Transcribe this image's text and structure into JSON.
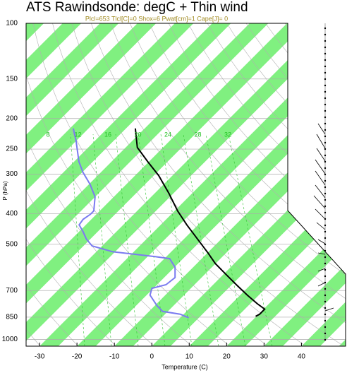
{
  "chart_data": {
    "type": "skewt",
    "title": "ATS Rawindsonde: degC + Thin wind",
    "subtitle": "Plcl=653 Tlcl[C]=0 Shox=6 Pwat[cm]=1 Cape[J]= 0",
    "x_label": "Temperature (C)",
    "y_label": "P (hPa)",
    "xlim": [
      -33.6,
      51.8
    ],
    "xticks": [
      -30,
      -20,
      -10,
      0,
      10,
      20,
      30,
      40
    ],
    "ylim": [
      100,
      1050
    ],
    "yticks": [
      100,
      150,
      200,
      250,
      300,
      400,
      500,
      700,
      850,
      1000
    ],
    "log_y": true,
    "grid": true,
    "band_color": "#80f080",
    "mixing_ratio_labels": [
      8,
      12,
      16,
      20,
      24,
      28,
      32
    ],
    "series": [
      {
        "color": "#000000",
        "pressure": [
          215,
          247,
          274,
          303,
          345,
          392,
          434,
          481,
          533,
          575,
          622,
          671,
          724,
          771,
          802,
          832,
          845
        ],
        "temperature": [
          -62.5,
          -56.9,
          -50.3,
          -43.7,
          -36.2,
          -29.2,
          -23.0,
          -16.4,
          -9.8,
          -5.1,
          0.6,
          6.2,
          11.9,
          16.9,
          20.3,
          20.3,
          19.8
        ]
      },
      {
        "color": "#7b7bf0",
        "pressure": [
          215,
          235,
          274,
          296,
          323,
          354,
          392,
          402,
          417,
          434,
          457,
          481,
          506,
          528,
          547,
          555,
          590,
          637,
          671,
          689,
          724,
          782,
          815,
          832,
          854
        ],
        "temperature": [
          -79.1,
          -75.1,
          -68.7,
          -64.8,
          -59.7,
          -55.0,
          -51.6,
          -51.6,
          -52.2,
          -51.8,
          -48.8,
          -46.1,
          -42.7,
          -35.6,
          -23.0,
          -18.6,
          -14.9,
          -12.1,
          -12.6,
          -15.4,
          -14.1,
          -9.4,
          -6.4,
          -0.9,
          2.3
        ]
      }
    ]
  }
}
